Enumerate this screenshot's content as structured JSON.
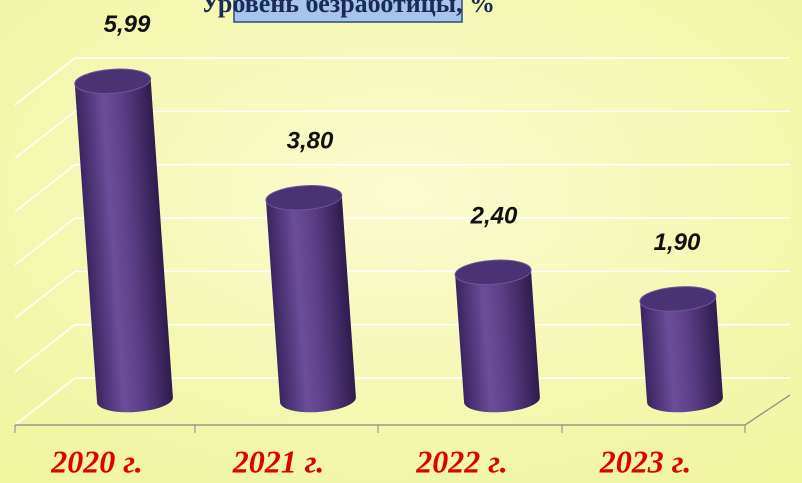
{
  "chart_data": {
    "type": "bar",
    "title": "Уровень безработицы, %",
    "categories": [
      "2020 г.",
      "2021 г.",
      "2022 г.",
      "2023 г."
    ],
    "values": [
      5.99,
      3.8,
      2.4,
      1.9
    ],
    "value_labels": [
      "5,99",
      "3,80",
      "2,40",
      "1,90"
    ],
    "color": "#5b3f86",
    "ylim": [
      0,
      6
    ],
    "yticks": [
      0,
      1,
      2,
      3,
      4,
      5,
      6
    ],
    "grid": true
  }
}
